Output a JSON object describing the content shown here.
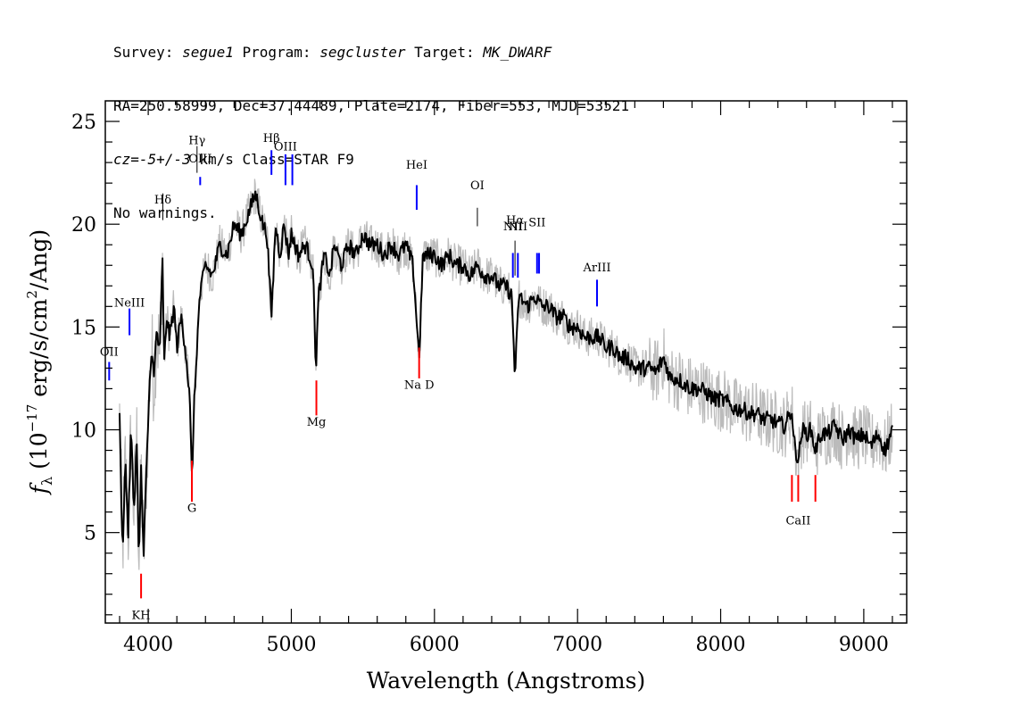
{
  "header": {
    "survey_key": "Survey: ",
    "survey": "segue1",
    "program_key": " Program: ",
    "program": "segcluster",
    "target_key": " Target: ",
    "target": "MK_DWARF",
    "line2": "RA=250.58999, Dec=37.44489, Plate=2174, Fiber=553, MJD=53521",
    "cz_key": "cz",
    "cz_eq": "=",
    "cz_value": "-5+/-3",
    "cz_rest": " km/s Class=STAR F9",
    "line4": "No warnings."
  },
  "chart_data": {
    "type": "line",
    "xlabel": "Wavelength (Angstroms)",
    "ylabel_text": {
      "f": "f",
      "lambda": "λ",
      "pre": " (10",
      "exp": "−17",
      "mid": " erg/s/cm",
      "sq": "2",
      "post": "/Ang)"
    },
    "xlim": [
      3700,
      9300
    ],
    "ylim": [
      0.6,
      26
    ],
    "x_ticks": [
      {
        "value": 4000,
        "label": "4000"
      },
      {
        "value": 5000,
        "label": "5000"
      },
      {
        "value": 6000,
        "label": "6000"
      },
      {
        "value": 7000,
        "label": "7000"
      },
      {
        "value": 8000,
        "label": "8000"
      },
      {
        "value": 9000,
        "label": "9000"
      }
    ],
    "x_minor_step": 200,
    "y_ticks": [
      {
        "value": 5,
        "label": "5"
      },
      {
        "value": 10,
        "label": "10"
      },
      {
        "value": 15,
        "label": "15"
      },
      {
        "value": 20,
        "label": "20"
      },
      {
        "value": 25,
        "label": "25"
      }
    ],
    "y_minor_step": 1,
    "series": [
      {
        "role": "smoothed",
        "color": "#000000",
        "points": [
          [
            3800,
            10.5
          ],
          [
            3820,
            4.0
          ],
          [
            3840,
            8.5
          ],
          [
            3860,
            5.0
          ],
          [
            3880,
            10.0
          ],
          [
            3900,
            6.0
          ],
          [
            3920,
            9.5
          ],
          [
            3935,
            3.5
          ],
          [
            3950,
            8.0
          ],
          [
            3968,
            3.8
          ],
          [
            3985,
            7.5
          ],
          [
            4000,
            10.5
          ],
          [
            4020,
            14.0
          ],
          [
            4040,
            12.5
          ],
          [
            4060,
            15.0
          ],
          [
            4080,
            13.5
          ],
          [
            4100,
            18.5
          ],
          [
            4110,
            13.0
          ],
          [
            4130,
            15.5
          ],
          [
            4150,
            14.5
          ],
          [
            4180,
            16.0
          ],
          [
            4200,
            14.0
          ],
          [
            4230,
            15.5
          ],
          [
            4260,
            14.0
          ],
          [
            4290,
            11.5
          ],
          [
            4305,
            7.5
          ],
          [
            4320,
            11.0
          ],
          [
            4340,
            14.0
          ],
          [
            4360,
            16.5
          ],
          [
            4400,
            18.0
          ],
          [
            4450,
            17.5
          ],
          [
            4500,
            19.0
          ],
          [
            4550,
            18.5
          ],
          [
            4600,
            20.0
          ],
          [
            4650,
            19.5
          ],
          [
            4700,
            20.5
          ],
          [
            4750,
            21.5
          ],
          [
            4800,
            20.0
          ],
          [
            4830,
            19.5
          ],
          [
            4861,
            15.5
          ],
          [
            4890,
            20.0
          ],
          [
            4920,
            18.5
          ],
          [
            4950,
            20.0
          ],
          [
            4980,
            18.5
          ],
          [
            5000,
            19.5
          ],
          [
            5050,
            18.5
          ],
          [
            5100,
            19.0
          ],
          [
            5150,
            18.0
          ],
          [
            5172,
            13.0
          ],
          [
            5190,
            16.5
          ],
          [
            5230,
            18.5
          ],
          [
            5270,
            17.5
          ],
          [
            5300,
            19.0
          ],
          [
            5350,
            18.0
          ],
          [
            5400,
            19.0
          ],
          [
            5450,
            18.5
          ],
          [
            5500,
            19.5
          ],
          [
            5550,
            19.0
          ],
          [
            5600,
            19.0
          ],
          [
            5650,
            18.5
          ],
          [
            5700,
            19.0
          ],
          [
            5750,
            18.5
          ],
          [
            5800,
            19.0
          ],
          [
            5850,
            18.0
          ],
          [
            5893,
            13.5
          ],
          [
            5920,
            18.5
          ],
          [
            5950,
            18.5
          ],
          [
            6000,
            18.5
          ],
          [
            6050,
            18.0
          ],
          [
            6100,
            18.5
          ],
          [
            6150,
            18.0
          ],
          [
            6200,
            18.0
          ],
          [
            6250,
            17.5
          ],
          [
            6300,
            18.0
          ],
          [
            6350,
            17.5
          ],
          [
            6400,
            17.5
          ],
          [
            6450,
            17.0
          ],
          [
            6500,
            17.0
          ],
          [
            6540,
            16.5
          ],
          [
            6563,
            12.5
          ],
          [
            6590,
            16.5
          ],
          [
            6650,
            16.0
          ],
          [
            6700,
            16.5
          ],
          [
            6750,
            16.0
          ],
          [
            6800,
            16.0
          ],
          [
            6850,
            15.5
          ],
          [
            6900,
            15.5
          ],
          [
            6950,
            15.0
          ],
          [
            7000,
            15.0
          ],
          [
            7050,
            14.5
          ],
          [
            7100,
            14.5
          ],
          [
            7150,
            14.5
          ],
          [
            7200,
            14.0
          ],
          [
            7250,
            14.0
          ],
          [
            7300,
            13.5
          ],
          [
            7350,
            13.5
          ],
          [
            7400,
            13.0
          ],
          [
            7450,
            13.0
          ],
          [
            7500,
            13.0
          ],
          [
            7550,
            12.8
          ],
          [
            7600,
            13.5
          ],
          [
            7650,
            12.5
          ],
          [
            7700,
            12.5
          ],
          [
            7750,
            12.2
          ],
          [
            7800,
            12.0
          ],
          [
            7850,
            12.0
          ],
          [
            7900,
            11.8
          ],
          [
            7950,
            11.5
          ],
          [
            8000,
            11.5
          ],
          [
            8050,
            11.3
          ],
          [
            8100,
            11.0
          ],
          [
            8150,
            11.0
          ],
          [
            8200,
            10.8
          ],
          [
            8250,
            10.8
          ],
          [
            8300,
            10.5
          ],
          [
            8350,
            10.5
          ],
          [
            8400,
            10.3
          ],
          [
            8450,
            10.2
          ],
          [
            8498,
            11.0
          ],
          [
            8510,
            9.5
          ],
          [
            8542,
            8.5
          ],
          [
            8570,
            10.0
          ],
          [
            8600,
            9.8
          ],
          [
            8630,
            10.0
          ],
          [
            8662,
            9.0
          ],
          [
            8700,
            9.8
          ],
          [
            8750,
            9.8
          ],
          [
            8800,
            10.2
          ],
          [
            8850,
            9.5
          ],
          [
            8900,
            10.0
          ],
          [
            8950,
            9.5
          ],
          [
            9000,
            9.8
          ],
          [
            9050,
            9.2
          ],
          [
            9100,
            9.8
          ],
          [
            9150,
            9.0
          ],
          [
            9200,
            10.0
          ]
        ]
      }
    ],
    "lines": [
      {
        "label": "KH",
        "x": 3950,
        "color": "#ff0000",
        "label_y": 0.8,
        "y1": 1.8,
        "y2": 3.0
      },
      {
        "label": "G",
        "x": 4305,
        "color": "#ff0000",
        "label_y": 6.0,
        "y1": 6.5,
        "y2": 8.5
      },
      {
        "label": "Mg",
        "x": 5175,
        "color": "#ff0000",
        "label_y": 10.2,
        "y1": 10.7,
        "y2": 12.4
      },
      {
        "label": "Na D",
        "x": 5893,
        "color": "#ff0000",
        "label_y": 12.0,
        "y1": 12.5,
        "y2": 14.0
      },
      {
        "label": "CaII",
        "x": 8542,
        "color": "#ff0000",
        "label_y": 5.4,
        "y1": 6.5,
        "y2": 7.8
      },
      {
        "label": "",
        "x": 8498,
        "color": "#ff0000",
        "label_y": 5.4,
        "y1": 6.5,
        "y2": 7.8
      },
      {
        "label": "",
        "x": 8662,
        "color": "#ff0000",
        "label_y": 5.4,
        "y1": 6.5,
        "y2": 7.8
      },
      {
        "label": "OII",
        "x": 3727,
        "color": "#0000ff",
        "label_y": 13.6,
        "y1": 12.4,
        "y2": 13.3
      },
      {
        "label": "NeIII",
        "x": 3869,
        "color": "#0000ff",
        "label_y": 16.0,
        "y1": 14.6,
        "y2": 15.9
      },
      {
        "label": "Hδ",
        "x": 4102,
        "color": "#000000",
        "label_y": 21.0,
        "y1": 20.2,
        "y2": 21.5
      },
      {
        "label": "Hγ",
        "x": 4341,
        "color": "#000000",
        "label_y": 23.9,
        "y1": 22.5,
        "y2": 23.8
      },
      {
        "label": "OIII",
        "x": 4363,
        "color": "#0000ff",
        "label_y": 23.0,
        "y1": 21.9,
        "y2": 22.3
      },
      {
        "label": "Hβ",
        "x": 4861,
        "color": "#0000ff",
        "label_y": 24.0,
        "y1": 22.4,
        "y2": 23.6
      },
      {
        "label": "OIII",
        "x": 4959,
        "color": "#0000ff",
        "label_y": 23.6,
        "y1": 21.9,
        "y2": 23.4
      },
      {
        "label": "",
        "x": 5007,
        "color": "#0000ff",
        "label_y": 23.6,
        "y1": 21.9,
        "y2": 23.4
      },
      {
        "label": "HeI",
        "x": 5876,
        "color": "#0000ff",
        "label_y": 22.7,
        "y1": 20.7,
        "y2": 21.9
      },
      {
        "label": "OI",
        "x": 6300,
        "color": "#000000",
        "label_y": 21.7,
        "y1": 19.9,
        "y2": 20.8
      },
      {
        "label": "NII",
        "x": 6548,
        "color": "#0000ff",
        "label_y": 19.7,
        "y1": 17.4,
        "y2": 18.6
      },
      {
        "label": "Hα",
        "x": 6563,
        "color": "#000000",
        "label_y": 20.0,
        "y1": 17.5,
        "y2": 19.2
      },
      {
        "label": "NII",
        "x": 6583,
        "color": "#0000ff",
        "label_y": 19.7,
        "y1": 17.4,
        "y2": 18.6
      },
      {
        "label": "SII",
        "x": 6717,
        "color": "#0000ff",
        "label_y": 19.9,
        "y1": 17.6,
        "y2": 18.6
      },
      {
        "label": "",
        "x": 6731,
        "color": "#0000ff",
        "label_y": 19.9,
        "y1": 17.6,
        "y2": 18.6
      },
      {
        "label": "ArIII",
        "x": 7136,
        "color": "#0000ff",
        "label_y": 17.7,
        "y1": 16.0,
        "y2": 17.3
      }
    ]
  }
}
